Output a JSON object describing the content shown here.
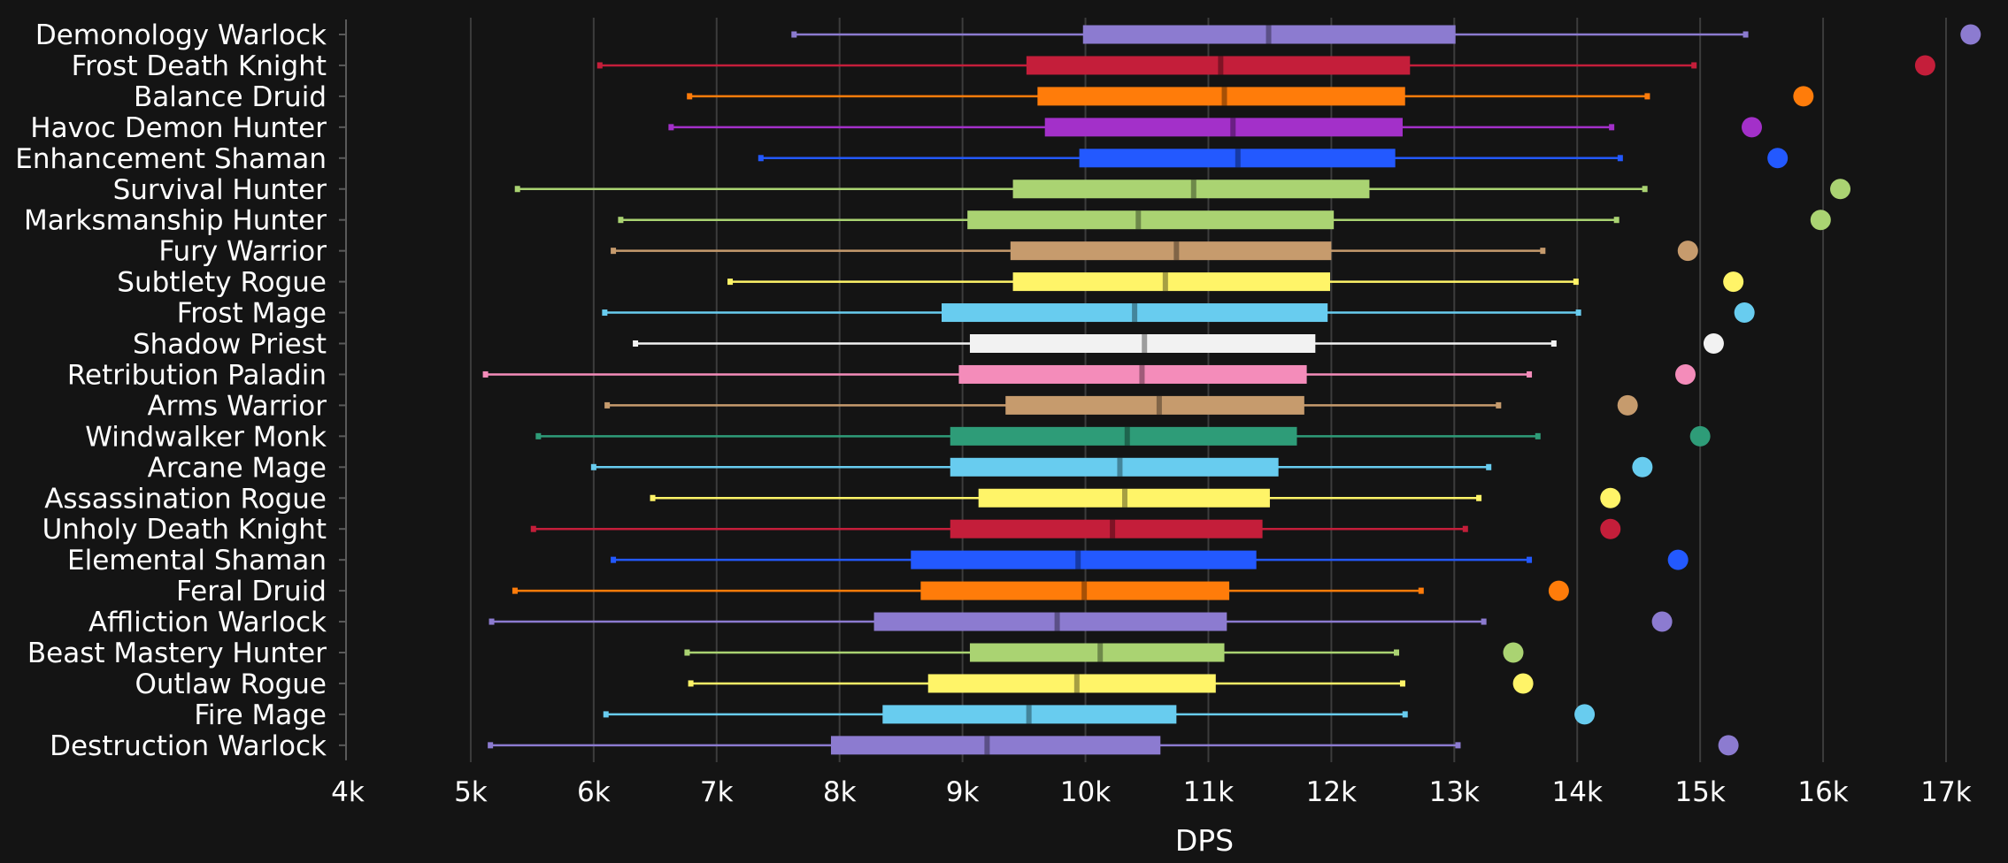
{
  "chart_data": {
    "type": "boxplot",
    "title": "",
    "xlabel": "DPS",
    "ylabel": "",
    "xlim": [
      4000,
      17200
    ],
    "x_ticks": [
      4000,
      5000,
      6000,
      7000,
      8000,
      9000,
      10000,
      11000,
      12000,
      13000,
      14000,
      15000,
      16000,
      17000
    ],
    "x_tick_labels": [
      "4k",
      "5k",
      "6k",
      "7k",
      "8k",
      "9k",
      "10k",
      "11k",
      "12k",
      "13k",
      "14k",
      "15k",
      "16k",
      "17k"
    ],
    "grid": "vertical",
    "legend": "none",
    "series": [
      {
        "name": "Demonology Warlock",
        "color": "#8c7bd0",
        "min": 7630,
        "q1": 9980,
        "median": 11490,
        "q3": 13010,
        "max": 15370,
        "max_point": 17200
      },
      {
        "name": "Frost Death Knight",
        "color": "#c41e3a",
        "min": 6050,
        "q1": 9520,
        "median": 11100,
        "q3": 12640,
        "max": 14950,
        "max_point": 16830
      },
      {
        "name": "Balance Druid",
        "color": "#ff7c0a",
        "min": 6780,
        "q1": 9610,
        "median": 11130,
        "q3": 12600,
        "max": 14570,
        "max_point": 15840
      },
      {
        "name": "Havoc Demon Hunter",
        "color": "#a330c9",
        "min": 6630,
        "q1": 9670,
        "median": 11200,
        "q3": 12580,
        "max": 14280,
        "max_point": 15420
      },
      {
        "name": "Enhancement Shaman",
        "color": "#2359ff",
        "min": 7360,
        "q1": 9950,
        "median": 11240,
        "q3": 12520,
        "max": 14350,
        "max_point": 15630
      },
      {
        "name": "Survival Hunter",
        "color": "#aad372",
        "min": 5380,
        "q1": 9410,
        "median": 10880,
        "q3": 12310,
        "max": 14550,
        "max_point": 16140
      },
      {
        "name": "Marksmanship Hunter",
        "color": "#aad372",
        "min": 6220,
        "q1": 9040,
        "median": 10430,
        "q3": 12020,
        "max": 14320,
        "max_point": 15980
      },
      {
        "name": "Fury Warrior",
        "color": "#c69b6d",
        "min": 6160,
        "q1": 9390,
        "median": 10740,
        "q3": 12000,
        "max": 13720,
        "max_point": 14900
      },
      {
        "name": "Subtlety Rogue",
        "color": "#fff468",
        "min": 7110,
        "q1": 9410,
        "median": 10650,
        "q3": 11990,
        "max": 13990,
        "max_point": 15270
      },
      {
        "name": "Frost Mage",
        "color": "#68ccef",
        "min": 6090,
        "q1": 8830,
        "median": 10400,
        "q3": 11970,
        "max": 14010,
        "max_point": 15360
      },
      {
        "name": "Shadow Priest",
        "color": "#f2f2f2",
        "min": 6340,
        "q1": 9060,
        "median": 10480,
        "q3": 11870,
        "max": 13810,
        "max_point": 15110
      },
      {
        "name": "Retribution Paladin",
        "color": "#f48cba",
        "min": 5120,
        "q1": 8970,
        "median": 10460,
        "q3": 11800,
        "max": 13610,
        "max_point": 14880
      },
      {
        "name": "Arms Warrior",
        "color": "#c69b6d",
        "min": 6110,
        "q1": 9350,
        "median": 10600,
        "q3": 11780,
        "max": 13360,
        "max_point": 14410
      },
      {
        "name": "Windwalker Monk",
        "color": "#2e9c78",
        "min": 5550,
        "q1": 8900,
        "median": 10340,
        "q3": 11720,
        "max": 13680,
        "max_point": 15000
      },
      {
        "name": "Arcane Mage",
        "color": "#68ccef",
        "min": 6000,
        "q1": 8900,
        "median": 10280,
        "q3": 11570,
        "max": 13280,
        "max_point": 14530
      },
      {
        "name": "Assassination Rogue",
        "color": "#fff468",
        "min": 6480,
        "q1": 9130,
        "median": 10320,
        "q3": 11500,
        "max": 13200,
        "max_point": 14270
      },
      {
        "name": "Unholy Death Knight",
        "color": "#c41e3a",
        "min": 5510,
        "q1": 8900,
        "median": 10220,
        "q3": 11440,
        "max": 13090,
        "max_point": 14270
      },
      {
        "name": "Elemental Shaman",
        "color": "#2359ff",
        "min": 6160,
        "q1": 8580,
        "median": 9940,
        "q3": 11390,
        "max": 13610,
        "max_point": 14820
      },
      {
        "name": "Feral Druid",
        "color": "#ff7c0a",
        "min": 5360,
        "q1": 8660,
        "median": 9990,
        "q3": 11170,
        "max": 12730,
        "max_point": 13850
      },
      {
        "name": "Affliction Warlock",
        "color": "#8c7bd0",
        "min": 5170,
        "q1": 8280,
        "median": 9770,
        "q3": 11150,
        "max": 13240,
        "max_point": 14690
      },
      {
        "name": "Beast Mastery Hunter",
        "color": "#aad372",
        "min": 6760,
        "q1": 9060,
        "median": 10120,
        "q3": 11130,
        "max": 12530,
        "max_point": 13480
      },
      {
        "name": "Outlaw Rogue",
        "color": "#fff468",
        "min": 6790,
        "q1": 8720,
        "median": 9930,
        "q3": 11060,
        "max": 12580,
        "max_point": 13560
      },
      {
        "name": "Fire Mage",
        "color": "#68ccef",
        "min": 6100,
        "q1": 8350,
        "median": 9540,
        "q3": 10740,
        "max": 12600,
        "max_point": 14060
      },
      {
        "name": "Destruction Warlock",
        "color": "#8c7bd0",
        "min": 5160,
        "q1": 7930,
        "median": 9200,
        "q3": 10610,
        "max": 13030,
        "max_point": 15230
      }
    ]
  }
}
